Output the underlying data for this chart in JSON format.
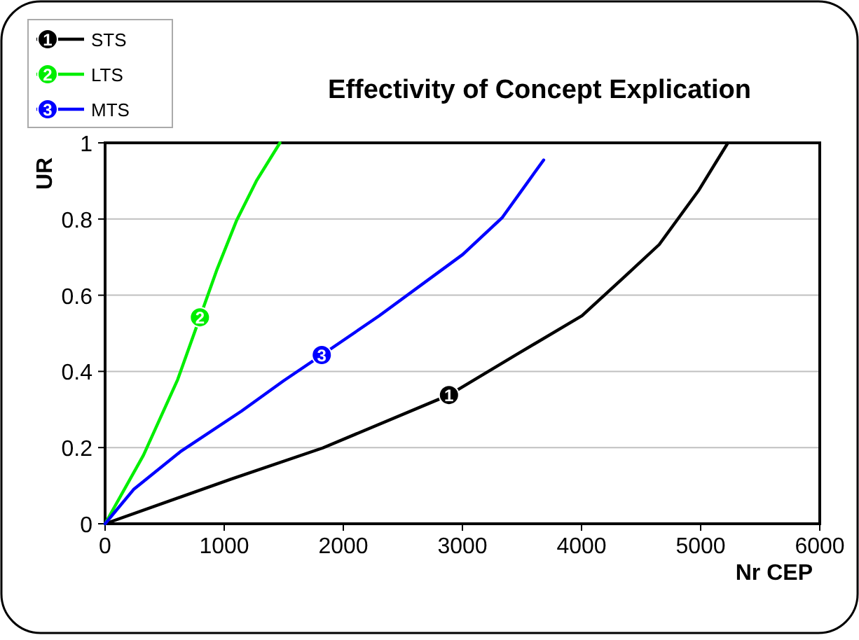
{
  "chart_data": {
    "type": "line",
    "title": "Effectivity of Concept Explication",
    "xlabel": "Nr CEP",
    "ylabel": "UR",
    "xlim": [
      0,
      6000
    ],
    "xticks": [
      0,
      1000,
      2000,
      3000,
      4000,
      5000,
      6000
    ],
    "ylim": [
      0,
      1
    ],
    "yticks": [
      0,
      0.2,
      0.4,
      0.6,
      0.8,
      1
    ],
    "grid": "y",
    "legend": "top left",
    "series": [
      {
        "name": "STS",
        "color": "#000000",
        "x": [
          0,
          1064,
          1827,
          2887,
          3414,
          4004,
          4363,
          4652,
          4981,
          5229
        ],
        "values": [
          0,
          0.118,
          0.199,
          0.338,
          0.437,
          0.546,
          0.649,
          0.733,
          0.874,
          1.0
        ]
      },
      {
        "name": "LTS",
        "color": "#00ee00",
        "x": [
          0,
          322,
          610,
          796,
          940,
          1105,
          1270,
          1468
        ],
        "values": [
          0,
          0.18,
          0.379,
          0.542,
          0.668,
          0.797,
          0.9,
          1.0
        ]
      },
      {
        "name": "MTS",
        "color": "#0000ff",
        "x": [
          0,
          239,
          631,
          1146,
          1497,
          1819,
          2301,
          3003,
          3332,
          3682
        ],
        "values": [
          0,
          0.09,
          0.189,
          0.296,
          0.375,
          0.443,
          0.546,
          0.707,
          0.803,
          0.955
        ]
      }
    ],
    "annotations": [
      {
        "text": "1",
        "x": 2887,
        "y": 0.338
      },
      {
        "text": "2",
        "x": 796,
        "y": 0.542
      },
      {
        "text": "3",
        "x": 1819,
        "y": 0.443
      }
    ]
  }
}
